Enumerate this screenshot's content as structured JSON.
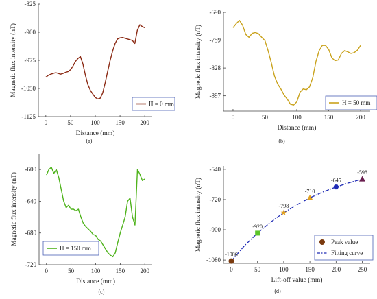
{
  "colors": {
    "a": "#8b2a14",
    "b": "#c9a21c",
    "c": "#4fb31c",
    "d_fit": "#1f2bb5",
    "d_peak": "#7a3a0e"
  },
  "chart_data": [
    {
      "type": "line",
      "id": "a",
      "sublabel": "(a)",
      "xlabel": "Distance (mm)",
      "ylabel": "Magnetic flux intensity (nT)",
      "xlim": [
        -15,
        215
      ],
      "ylim": [
        -1125,
        -825
      ],
      "xticks": [
        0,
        50,
        100,
        150,
        200
      ],
      "yticks": [
        -825,
        -900,
        -975,
        -1050,
        -1125
      ],
      "legend": "top-left",
      "series": [
        {
          "name": "H = 0 mm",
          "x": [
            0,
            5,
            10,
            15,
            20,
            25,
            30,
            35,
            40,
            45,
            50,
            55,
            60,
            65,
            70,
            75,
            80,
            85,
            90,
            95,
            100,
            105,
            110,
            115,
            120,
            125,
            130,
            135,
            140,
            145,
            150,
            155,
            160,
            165,
            170,
            175,
            180,
            185,
            190,
            195,
            200
          ],
          "y": [
            -1020,
            -1015,
            -1012,
            -1010,
            -1008,
            -1010,
            -1012,
            -1010,
            -1007,
            -1005,
            -1000,
            -990,
            -978,
            -970,
            -965,
            -985,
            -1015,
            -1040,
            -1055,
            -1065,
            -1074,
            -1078,
            -1076,
            -1062,
            -1035,
            -1005,
            -975,
            -950,
            -930,
            -918,
            -915,
            -914,
            -916,
            -918,
            -920,
            -922,
            -930,
            -895,
            -880,
            -885,
            -888
          ]
        }
      ]
    },
    {
      "type": "line",
      "id": "b",
      "sublabel": "(b)",
      "xlabel": "Distance (mm)",
      "ylabel": "Magnetic flux intensity (nT)",
      "xlim": [
        -15,
        215
      ],
      "ylim": [
        -935,
        -690
      ],
      "xticks": [
        0,
        50,
        100,
        150,
        200
      ],
      "yticks": [
        -690,
        -759,
        -828,
        -897
      ],
      "legend": "bottom-right",
      "series": [
        {
          "name": "H = 50 mm",
          "x": [
            0,
            5,
            10,
            15,
            20,
            25,
            30,
            35,
            40,
            45,
            50,
            55,
            60,
            65,
            70,
            75,
            80,
            85,
            90,
            95,
            100,
            105,
            110,
            115,
            120,
            125,
            130,
            135,
            140,
            145,
            150,
            155,
            160,
            165,
            170,
            175,
            180,
            185,
            190,
            195,
            200
          ],
          "y": [
            -728,
            -718,
            -710,
            -722,
            -745,
            -752,
            -742,
            -740,
            -743,
            -752,
            -760,
            -785,
            -815,
            -848,
            -868,
            -880,
            -895,
            -905,
            -918,
            -920,
            -912,
            -888,
            -880,
            -882,
            -875,
            -852,
            -812,
            -785,
            -772,
            -772,
            -782,
            -803,
            -810,
            -808,
            -792,
            -785,
            -788,
            -792,
            -790,
            -784,
            -772
          ]
        }
      ]
    },
    {
      "type": "line",
      "id": "c",
      "sublabel": "(c)",
      "xlabel": "Distance (mm)",
      "ylabel": "Magnetic flux intensity (nT)",
      "xlim": [
        -15,
        215
      ],
      "ylim": [
        -720,
        -580
      ],
      "xticks": [
        0,
        50,
        100,
        150,
        200
      ],
      "yticks": [
        -600,
        -640,
        -680,
        -720
      ],
      "legend": "bottom-left",
      "series": [
        {
          "name": "H = 150 mm",
          "x": [
            0,
            5,
            10,
            15,
            20,
            25,
            30,
            35,
            40,
            45,
            50,
            55,
            60,
            65,
            70,
            75,
            80,
            85,
            90,
            95,
            100,
            105,
            110,
            115,
            120,
            125,
            130,
            135,
            140,
            145,
            150,
            155,
            160,
            165,
            170,
            175,
            180,
            185,
            190,
            195,
            200
          ],
          "y": [
            -607,
            -600,
            -597,
            -605,
            -600,
            -610,
            -625,
            -640,
            -648,
            -645,
            -650,
            -650,
            -652,
            -650,
            -660,
            -668,
            -672,
            -675,
            -678,
            -682,
            -683,
            -688,
            -690,
            -695,
            -700,
            -705,
            -708,
            -710,
            -705,
            -692,
            -680,
            -670,
            -660,
            -640,
            -636,
            -660,
            -670,
            -600,
            -606,
            -614,
            -612
          ]
        }
      ]
    },
    {
      "type": "scatter",
      "id": "d",
      "sublabel": "(d)",
      "xlabel": "Lift-off value (mm)",
      "ylabel": "Magnetic flux intensity (nT)",
      "xlim": [
        -15,
        265
      ],
      "ylim": [
        -1100,
        -520
      ],
      "xticks": [
        0,
        50,
        100,
        150,
        200,
        250
      ],
      "yticks": [
        -540,
        -720,
        -900,
        -1080
      ],
      "legend": "bottom-right",
      "points": {
        "name": "Peak value",
        "x": [
          0,
          50,
          100,
          150,
          200,
          250
        ],
        "y": [
          -1086,
          -920,
          -798,
          -710,
          -645,
          -598
        ],
        "labels": [
          "-1086",
          "-920",
          "-798",
          "-710",
          "-645",
          "-598"
        ],
        "markers": [
          "circle",
          "square",
          "star",
          "triangle",
          "hexagon",
          "triangle"
        ],
        "marker_colors": [
          "#7a3a0e",
          "#5cc42a",
          "#e0a020",
          "#e0a020",
          "#1f2bb5",
          "#6a1f4f"
        ]
      },
      "fit": {
        "name": "Fitting curve",
        "x": [
          0,
          25,
          50,
          75,
          100,
          125,
          150,
          175,
          200,
          225,
          250
        ],
        "y": [
          -1086,
          -995,
          -920,
          -855,
          -798,
          -752,
          -710,
          -675,
          -645,
          -620,
          -598
        ]
      }
    }
  ]
}
